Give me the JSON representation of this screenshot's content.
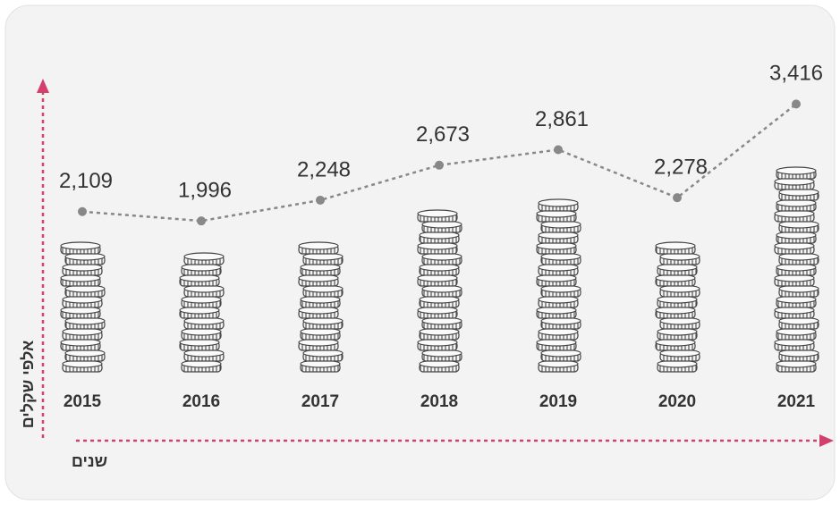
{
  "chart_data": {
    "type": "line",
    "categories": [
      "2015",
      "2016",
      "2017",
      "2018",
      "2019",
      "2020",
      "2021"
    ],
    "values": [
      2109,
      1996,
      2248,
      2673,
      2861,
      2278,
      3416
    ],
    "value_labels": [
      "2,109",
      "1,996",
      "2,248",
      "2,673",
      "2,861",
      "2,278",
      "3,416"
    ],
    "ylim": [
      0,
      3800
    ],
    "y_label": "אלפי שקלים",
    "x_label": "שנים",
    "color": "#888888",
    "axis_color": "#d1416b"
  }
}
